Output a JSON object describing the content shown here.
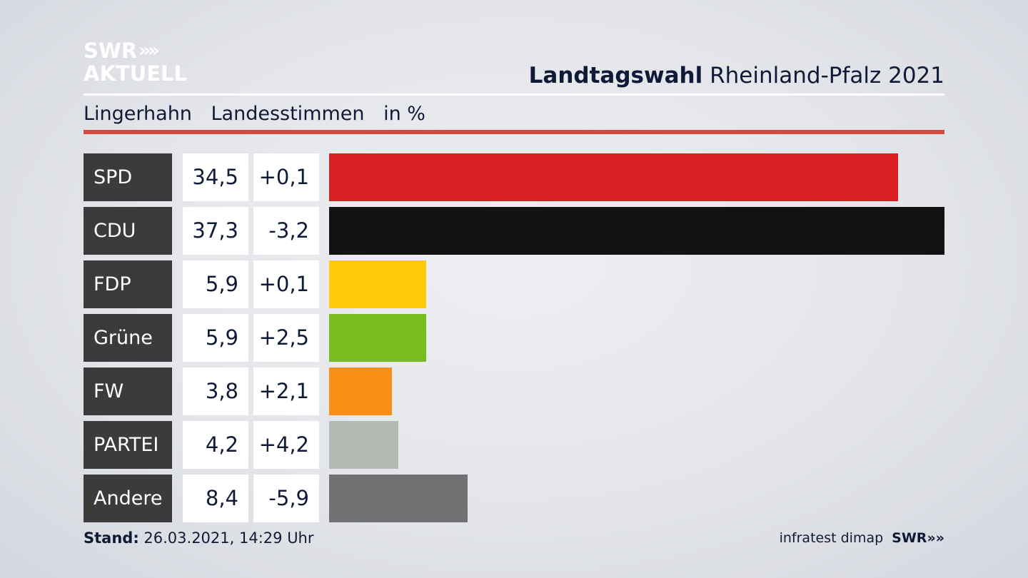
{
  "brand": {
    "line1": "SWR",
    "line2": "AKTUELL",
    "chevrons": "»"
  },
  "header": {
    "title_bold": "Landtagswahl",
    "title_rest": "Rheinland-Pfalz 2021"
  },
  "subheader": {
    "place": "Lingerhahn",
    "metric": "Landesstimmen",
    "unit": "in %"
  },
  "chart_data": {
    "type": "bar",
    "categories": [
      "SPD",
      "CDU",
      "FDP",
      "Grüne",
      "FW",
      "PARTEI",
      "Andere"
    ],
    "values": [
      34.5,
      37.3,
      5.9,
      5.9,
      3.8,
      4.2,
      8.4
    ],
    "values_label": [
      "34,5",
      "37,3",
      "5,9",
      "5,9",
      "3,8",
      "4,2",
      "8,4"
    ],
    "changes": [
      0.1,
      -3.2,
      0.1,
      2.5,
      2.1,
      4.2,
      -5.9
    ],
    "changes_label": [
      "+0,1",
      "-3,2",
      "+0,1",
      "+2,5",
      "+2,1",
      "+4,2",
      "-5,9"
    ],
    "colors": [
      "#d81f21",
      "#121212",
      "#fdcb0a",
      "#79bc1e",
      "#fb8e17",
      "#b3bab4",
      "#707173"
    ],
    "orientation": "horizontal"
  },
  "footer": {
    "stand_label": "Stand:",
    "stand_value": "26.03.2021, 14:29 Uhr",
    "source": "infratest dimap",
    "brand": "SWR"
  }
}
